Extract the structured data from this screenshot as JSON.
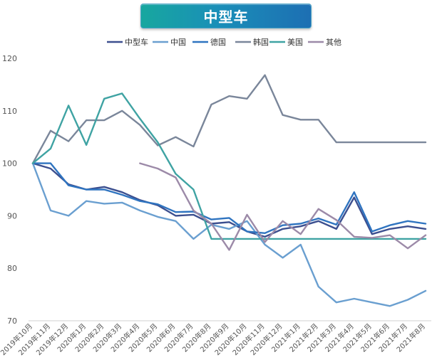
{
  "chart_data": {
    "type": "line",
    "title": "中型车",
    "xlabel": "",
    "ylabel": "",
    "ylim": [
      70,
      120
    ],
    "yticks": [
      70,
      80,
      90,
      100,
      110,
      120
    ],
    "grid": false,
    "legend_position": "top",
    "categories": [
      "2019年10月",
      "2019年11月",
      "2019年12月",
      "2020年1月",
      "2020年2月",
      "2020年3月",
      "2020年4月",
      "2020年5月",
      "2020年6月",
      "2020年7月",
      "2020年8月",
      "2020年9月",
      "2020年10月",
      "2020年11月",
      "2020年12月",
      "2021年1月",
      "2021年2月",
      "2021年3月",
      "2021年4月",
      "2021年5月",
      "2021年6月",
      "2021年7月",
      "2021年8月"
    ],
    "series": [
      {
        "name": "中型车",
        "color": "#3c4f8f",
        "values": [
          100,
          99,
          96,
          95,
          95.5,
          94.5,
          93,
          92,
          90,
          90.2,
          88.5,
          88.8,
          87,
          86,
          87.5,
          88,
          89,
          87.5,
          93.5,
          86.5,
          87.5,
          88,
          87.5
        ]
      },
      {
        "name": "中国",
        "color": "#6a9fd0",
        "values": [
          100,
          91,
          90,
          92.8,
          92.3,
          92.5,
          91,
          89.8,
          89,
          85.6,
          88.3,
          87.5,
          89,
          84.5,
          82,
          84.5,
          76.5,
          73.5,
          74.2,
          73.5,
          72.8,
          74,
          75.7
        ]
      },
      {
        "name": "德国",
        "color": "#2f74c0",
        "values": [
          100,
          100,
          95.8,
          95,
          95,
          94,
          92.8,
          92.2,
          90.7,
          90.8,
          89.3,
          89.6,
          87,
          86.7,
          88.2,
          88.5,
          89.5,
          88.3,
          94.5,
          87,
          88.2,
          89,
          88.5
        ]
      },
      {
        "name": "韩国",
        "color": "#7a869a",
        "values": [
          100,
          106.2,
          104.2,
          108.2,
          108.2,
          110,
          107.3,
          103.4,
          105,
          103.2,
          111.2,
          112.8,
          112.3,
          116.8,
          109.2,
          108.3,
          108.3,
          104,
          104,
          104,
          104,
          104,
          104
        ]
      },
      {
        "name": "美国",
        "color": "#3fa3a3",
        "values": [
          100,
          102.8,
          111,
          103.5,
          112.3,
          113.3,
          108.5,
          104,
          98,
          95,
          85.6,
          85.6,
          85.6,
          85.6,
          85.6,
          85.6,
          85.6,
          85.6,
          85.6,
          85.6,
          85.6,
          85.6,
          85.6
        ]
      },
      {
        "name": "其他",
        "color": "#9c8aa8",
        "values": [
          null,
          null,
          null,
          null,
          null,
          null,
          100,
          99,
          97.3,
          91,
          88.5,
          83.5,
          90.2,
          85,
          89,
          86.5,
          91.3,
          89.2,
          86,
          85.8,
          86.3,
          83.8,
          86.3
        ]
      }
    ]
  }
}
